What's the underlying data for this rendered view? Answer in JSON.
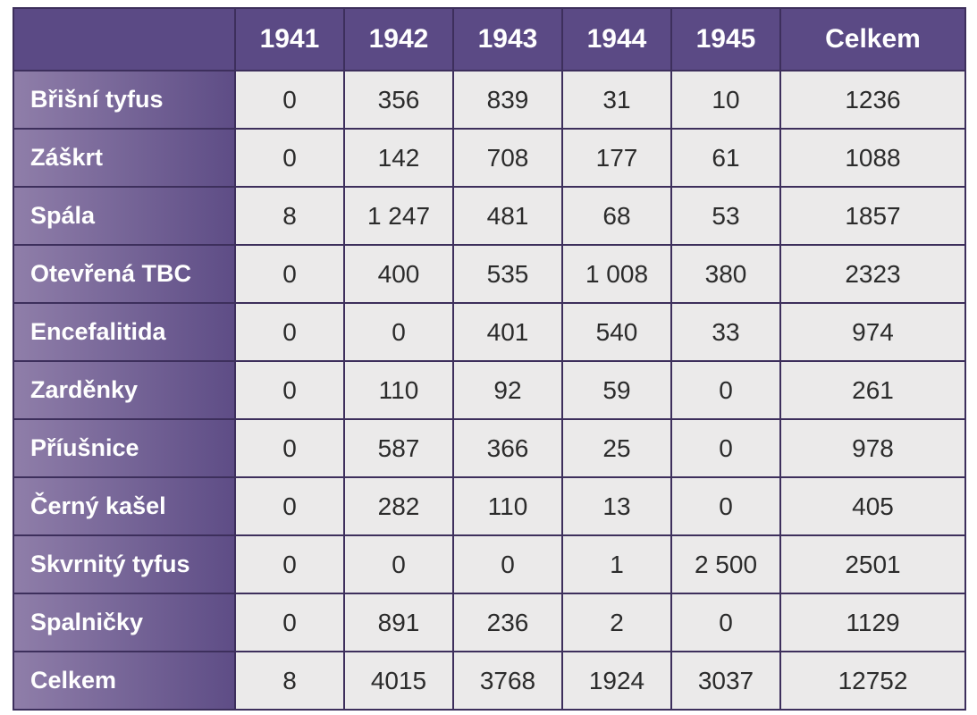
{
  "table": {
    "columns": [
      "1941",
      "1942",
      "1943",
      "1944",
      "1945",
      "Celkem"
    ],
    "rows": [
      {
        "label": "Břišní tyfus",
        "values": [
          "0",
          "356",
          "839",
          "31",
          "10",
          "1236"
        ]
      },
      {
        "label": "Záškrt",
        "values": [
          "0",
          "142",
          "708",
          "177",
          "61",
          "1088"
        ]
      },
      {
        "label": "Spála",
        "values": [
          "8",
          "1 247",
          "481",
          "68",
          "53",
          "1857"
        ]
      },
      {
        "label": "Otevřená TBC",
        "values": [
          "0",
          "400",
          "535",
          "1 008",
          "380",
          "2323"
        ]
      },
      {
        "label": "Encefalitida",
        "values": [
          "0",
          "0",
          "401",
          "540",
          "33",
          "974"
        ]
      },
      {
        "label": "Zarděnky",
        "values": [
          "0",
          "110",
          "92",
          "59",
          "0",
          "261"
        ]
      },
      {
        "label": "Příušnice",
        "values": [
          "0",
          "587",
          "366",
          "25",
          "0",
          "978"
        ]
      },
      {
        "label": "Černý kašel",
        "values": [
          "0",
          "282",
          "110",
          "13",
          "0",
          "405"
        ]
      },
      {
        "label": "Skvrnitý tyfus",
        "values": [
          "0",
          "0",
          "0",
          "1",
          "2 500",
          "2501"
        ]
      },
      {
        "label": "Spalničky",
        "values": [
          "0",
          "891",
          "236",
          "2",
          "0",
          "1129"
        ]
      },
      {
        "label": "Celkem",
        "values": [
          "8",
          "4015",
          "3768",
          "1924",
          "3037",
          "12752"
        ]
      }
    ]
  },
  "colors": {
    "header_bg": "#5b4a85",
    "row_label_gradient_start": "#8f7ea9",
    "row_label_gradient_end": "#5e4d86",
    "cell_bg": "#ebeaea",
    "border": "#3d2f5c"
  }
}
